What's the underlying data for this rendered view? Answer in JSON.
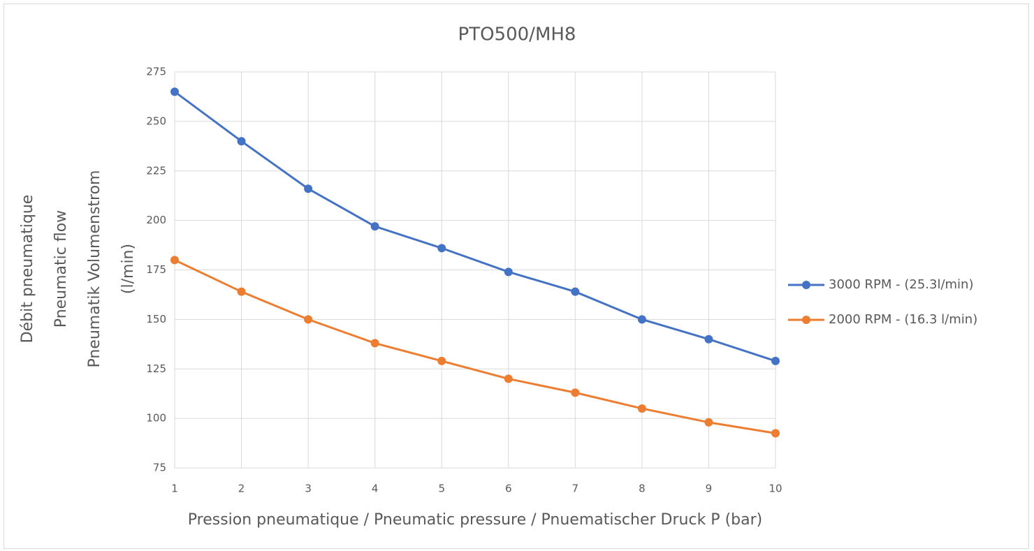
{
  "chart_data": {
    "type": "line",
    "title": "PTO500/MH8",
    "x_label": "Pression pneumatique / Pneumatic pressure / Pnuematischer Druck P (bar)",
    "y_label": [
      "Débit pneumatique",
      "Pneumatic flow",
      "Pneumatik Volumenstrom",
      "(l/min)"
    ],
    "x": [
      1,
      2,
      3,
      4,
      5,
      6,
      7,
      8,
      9,
      10
    ],
    "series": [
      {
        "name": "3000 RPM - (25.3l/min)",
        "color": "#4472c4",
        "values": [
          265,
          240,
          216,
          197,
          186,
          174,
          164,
          150,
          140,
          129
        ]
      },
      {
        "name": "2000 RPM - (16.3 l/min)",
        "color": "#ed7d31",
        "values": [
          180,
          164,
          150,
          138,
          129,
          120,
          113,
          105,
          98,
          92.5
        ]
      }
    ],
    "xlim": [
      1,
      10
    ],
    "xticks": [
      1,
      2,
      3,
      4,
      5,
      6,
      7,
      8,
      9,
      10
    ],
    "ylim": [
      75,
      275
    ],
    "yticks": [
      75,
      100,
      125,
      150,
      175,
      200,
      225,
      250,
      275
    ],
    "grid": true,
    "legend": "right"
  }
}
